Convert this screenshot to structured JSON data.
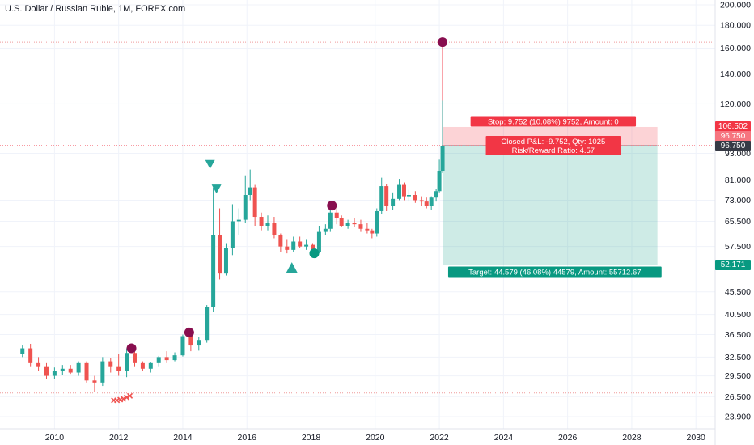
{
  "header": {
    "title": "U.S. Dollar / Russian Ruble, 1M, FOREX.com"
  },
  "colors": {
    "up": "#26a69a",
    "down": "#ef5350",
    "marker": "#880e4f",
    "stop": "#f23645",
    "target": "#089981",
    "last": "#363a45",
    "grid": "#f0f3fa"
  },
  "price_tags": {
    "stop": "106.502",
    "entry": "96.750",
    "last": "96.750",
    "target": "52.171"
  },
  "chart_data": {
    "type": "candlestick",
    "title": "U.S. Dollar / Russian Ruble, 1M, FOREX.com",
    "scale": "log",
    "ylim": [
      22,
      205
    ],
    "xlim": [
      2008.3,
      2030.6
    ],
    "x_ticks": [
      "2010",
      "2012",
      "2014",
      "2016",
      "2018",
      "2020",
      "2022",
      "2024",
      "2026",
      "2028",
      "2030"
    ],
    "y_ticks": [
      "200.000",
      "180.000",
      "160.000",
      "140.000",
      "120.000",
      "106.502",
      "96.750",
      "96.750",
      "93.000",
      "81.000",
      "73.000",
      "65.500",
      "57.500",
      "52.171",
      "45.500",
      "40.500",
      "36.500",
      "32.500",
      "29.500",
      "26.500",
      "23.900"
    ],
    "grid": true,
    "ohlc": [
      [
        2009.0,
        33.0,
        34.5,
        32.5,
        34.0
      ],
      [
        2009.25,
        34.0,
        34.8,
        31.0,
        31.5
      ],
      [
        2009.5,
        31.5,
        32.5,
        30.3,
        31.0
      ],
      [
        2009.75,
        31.0,
        31.5,
        29.0,
        29.5
      ],
      [
        2010.0,
        29.5,
        30.8,
        29.0,
        30.2
      ],
      [
        2010.25,
        30.2,
        31.2,
        29.6,
        30.6
      ],
      [
        2010.5,
        30.6,
        31.2,
        29.8,
        30.0
      ],
      [
        2010.75,
        30.0,
        31.8,
        29.5,
        31.5
      ],
      [
        2011.0,
        31.5,
        31.8,
        28.5,
        28.8
      ],
      [
        2011.25,
        28.8,
        29.5,
        27.2,
        28.5
      ],
      [
        2011.5,
        28.5,
        32.5,
        28.0,
        31.8
      ],
      [
        2011.75,
        31.8,
        32.3,
        30.0,
        31.0
      ],
      [
        2012.0,
        31.0,
        33.0,
        29.5,
        30.3
      ],
      [
        2012.25,
        30.3,
        34.0,
        29.3,
        33.2
      ],
      [
        2012.5,
        33.2,
        33.4,
        31.0,
        31.5
      ],
      [
        2012.75,
        31.5,
        31.8,
        30.3,
        30.6
      ],
      [
        2013.0,
        30.6,
        31.6,
        30.0,
        31.5
      ],
      [
        2013.25,
        31.5,
        32.7,
        31.0,
        32.5
      ],
      [
        2013.5,
        32.5,
        33.5,
        31.5,
        32.0
      ],
      [
        2013.75,
        32.0,
        33.3,
        31.8,
        32.8
      ],
      [
        2014.0,
        32.8,
        36.5,
        32.6,
        36.2
      ],
      [
        2014.25,
        36.2,
        36.4,
        33.5,
        34.5
      ],
      [
        2014.5,
        34.5,
        36.0,
        33.6,
        35.5
      ],
      [
        2014.75,
        35.5,
        42.5,
        35.0,
        42.0
      ],
      [
        2014.95,
        42.0,
        78.0,
        41.0,
        61.0
      ],
      [
        2015.15,
        61.0,
        70.0,
        48.5,
        50.0
      ],
      [
        2015.35,
        50.0,
        58.5,
        49.5,
        57.0
      ],
      [
        2015.55,
        57.0,
        71.5,
        55.0,
        65.5
      ],
      [
        2015.75,
        65.5,
        70.0,
        61.0,
        66.0
      ],
      [
        2015.95,
        66.0,
        83.0,
        65.0,
        75.0
      ],
      [
        2016.1,
        75.0,
        85.5,
        73.0,
        78.0
      ],
      [
        2016.25,
        78.0,
        79.0,
        64.0,
        67.0
      ],
      [
        2016.45,
        67.0,
        68.5,
        62.5,
        64.0
      ],
      [
        2016.65,
        64.0,
        67.5,
        62.5,
        65.0
      ],
      [
        2016.85,
        65.0,
        67.0,
        60.0,
        61.0
      ],
      [
        2017.05,
        61.0,
        61.5,
        56.0,
        57.5
      ],
      [
        2017.25,
        57.5,
        59.5,
        55.5,
        56.5
      ],
      [
        2017.45,
        56.5,
        60.5,
        56.0,
        59.0
      ],
      [
        2017.65,
        59.0,
        60.5,
        57.0,
        57.5
      ],
      [
        2017.85,
        57.5,
        59.5,
        56.5,
        58.0
      ],
      [
        2018.05,
        58.0,
        58.5,
        55.6,
        56.0
      ],
      [
        2018.25,
        56.0,
        64.0,
        55.5,
        62.0
      ],
      [
        2018.45,
        62.0,
        64.5,
        61.0,
        63.0
      ],
      [
        2018.6,
        63.0,
        70.5,
        62.0,
        68.5
      ],
      [
        2018.8,
        68.5,
        70.0,
        64.5,
        66.5
      ],
      [
        2018.95,
        66.5,
        67.5,
        63.5,
        64.0
      ],
      [
        2019.15,
        64.0,
        66.0,
        63.0,
        65.0
      ],
      [
        2019.35,
        65.0,
        66.5,
        63.5,
        64.5
      ],
      [
        2019.55,
        64.5,
        66.0,
        62.0,
        63.0
      ],
      [
        2019.75,
        63.0,
        65.0,
        61.5,
        62.5
      ],
      [
        2019.9,
        62.5,
        63.0,
        60.0,
        61.5
      ],
      [
        2020.05,
        61.5,
        70.0,
        60.5,
        69.0
      ],
      [
        2020.2,
        69.0,
        82.0,
        68.0,
        78.5
      ],
      [
        2020.35,
        78.5,
        79.5,
        69.0,
        71.0
      ],
      [
        2020.55,
        71.0,
        76.0,
        69.5,
        73.5
      ],
      [
        2020.75,
        73.5,
        81.5,
        73.0,
        79.0
      ],
      [
        2020.9,
        79.0,
        80.0,
        73.0,
        74.5
      ],
      [
        2021.05,
        74.5,
        77.0,
        72.5,
        75.0
      ],
      [
        2021.25,
        75.0,
        76.5,
        72.0,
        73.0
      ],
      [
        2021.45,
        73.0,
        74.5,
        71.0,
        72.5
      ],
      [
        2021.6,
        72.5,
        74.0,
        70.0,
        71.0
      ],
      [
        2021.75,
        71.0,
        74.5,
        69.5,
        74.0
      ],
      [
        2021.9,
        74.0,
        77.5,
        72.5,
        76.5
      ],
      [
        2022.0,
        76.5,
        90.0,
        76.0,
        85.0
      ],
      [
        2022.1,
        85.0,
        122.0,
        84.0,
        96.75
      ]
    ],
    "position": {
      "type": "short",
      "entry": 96.75,
      "stop": 106.502,
      "target": 52.171,
      "x_start": 2022.1,
      "x_end": 2028.8,
      "stop_label": "Stop: 9.752 (10.08%) 9752, Amount: 0",
      "pnl_label_line1": "Closed P&L: -9.752, Qty: 1025",
      "pnl_label_line2": "Risk/Reward Ratio: 4.57",
      "target_label": "Target: 44.579 (46.08%) 44579, Amount: 55712.67"
    },
    "horizontal_lines": [
      165.0,
      96.75,
      27.0
    ],
    "markers": [
      {
        "shape": "circle",
        "color": "#880e4f",
        "x": 2012.4,
        "y": 34.0
      },
      {
        "shape": "circle",
        "color": "#880e4f",
        "x": 2014.2,
        "y": 36.9
      },
      {
        "shape": "circle",
        "color": "#880e4f",
        "x": 2018.65,
        "y": 71.0
      },
      {
        "shape": "circle",
        "color": "#880e4f",
        "x": 2022.1,
        "y": 165.0
      },
      {
        "shape": "circle",
        "color": "#089981",
        "x": 2018.1,
        "y": 55.5
      },
      {
        "shape": "triangle-down",
        "color": "#26a69a",
        "x": 2014.85,
        "y": 88.0
      },
      {
        "shape": "triangle-down",
        "color": "#26a69a",
        "x": 2015.05,
        "y": 77.5
      },
      {
        "shape": "triangle-up",
        "color": "#26a69a",
        "x": 2017.4,
        "y": 51.5
      }
    ],
    "cross_markers": [
      {
        "x": 2011.85,
        "y": 26.0
      },
      {
        "x": 2011.95,
        "y": 26.0
      },
      {
        "x": 2012.05,
        "y": 26.1
      },
      {
        "x": 2012.15,
        "y": 26.2
      },
      {
        "x": 2012.25,
        "y": 26.4
      },
      {
        "x": 2012.35,
        "y": 26.6
      }
    ]
  }
}
